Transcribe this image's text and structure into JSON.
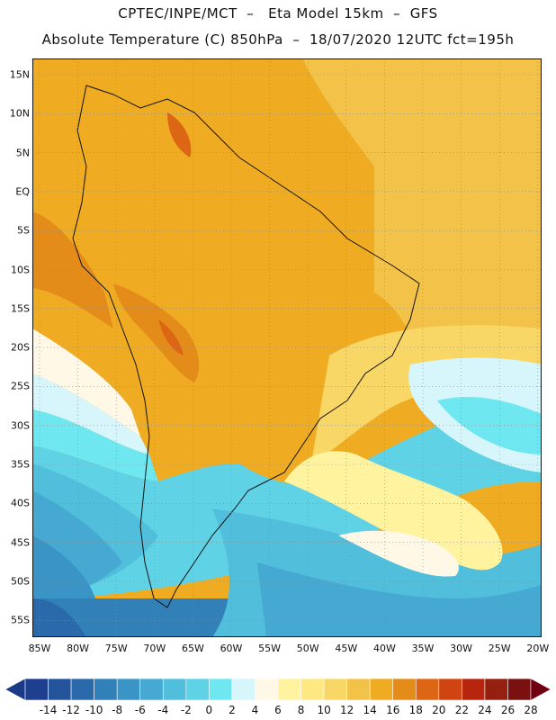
{
  "title": {
    "line1": "CPTEC/INPE/MCT  –   Eta Model 15km  –  GFS",
    "line2": "Absolute Temperature (C) 850hPa  –  18/07/2020 12UTC fct=195h"
  },
  "latitude_labels": [
    "15N",
    "10N",
    "5N",
    "EQ",
    "5S",
    "10S",
    "15S",
    "20S",
    "25S",
    "30S",
    "35S",
    "40S",
    "45S",
    "50S",
    "55S"
  ],
  "longitude_labels": [
    "85W",
    "80W",
    "75W",
    "70W",
    "65W",
    "60W",
    "55W",
    "50W",
    "45W",
    "40W",
    "35W",
    "30W",
    "25W",
    "20W"
  ],
  "colorbar": {
    "labels": [
      "-14",
      "-12",
      "-10",
      "-8",
      "-6",
      "-4",
      "-2",
      "0",
      "2",
      "4",
      "6",
      "8",
      "10",
      "12",
      "14",
      "16",
      "18",
      "20",
      "22",
      "24",
      "26",
      "28"
    ],
    "colors": [
      "#1e3f8f",
      "#24549c",
      "#2a6aaa",
      "#3180b8",
      "#3a95c6",
      "#45a9d2",
      "#51bedc",
      "#5fd2e6",
      "#6fe7f0",
      "#d6f6fb",
      "#fff8e6",
      "#fff3a0",
      "#fde882",
      "#f9d766",
      "#f3c249",
      "#efac22",
      "#e48c1a",
      "#dd6614",
      "#cf4410",
      "#b7250d",
      "#952010",
      "#7a1010"
    ],
    "min_arrow_color": "#1a3a85",
    "max_arrow_color": "#700010"
  },
  "legend_colors": {
    "ocean_deep": "#3c9fca",
    "land_border": "#111111",
    "grid": "#888888"
  }
}
